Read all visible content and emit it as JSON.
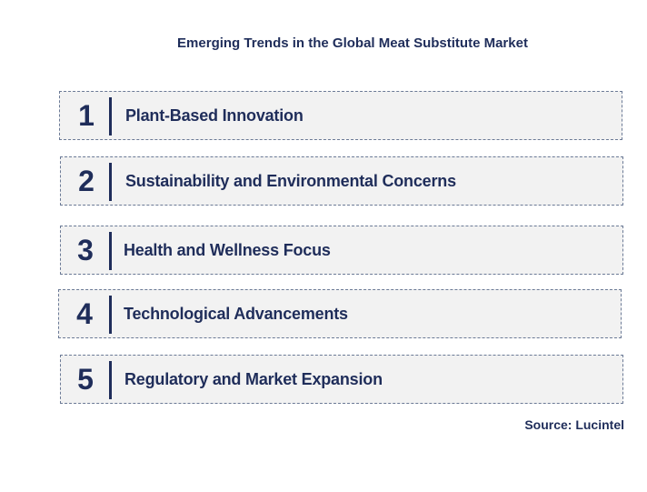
{
  "title": "Emerging Trends in the Global Meat Substitute Market",
  "trends": [
    {
      "number": "1",
      "label": "Plant-Based Innovation"
    },
    {
      "number": "2",
      "label": "Sustainability and Environmental Concerns"
    },
    {
      "number": "3",
      "label": "Health and Wellness Focus"
    },
    {
      "number": "4",
      "label": "Technological Advancements"
    },
    {
      "number": "5",
      "label": "Regulatory and Market Expansion"
    }
  ],
  "source": "Source: Lucintel"
}
